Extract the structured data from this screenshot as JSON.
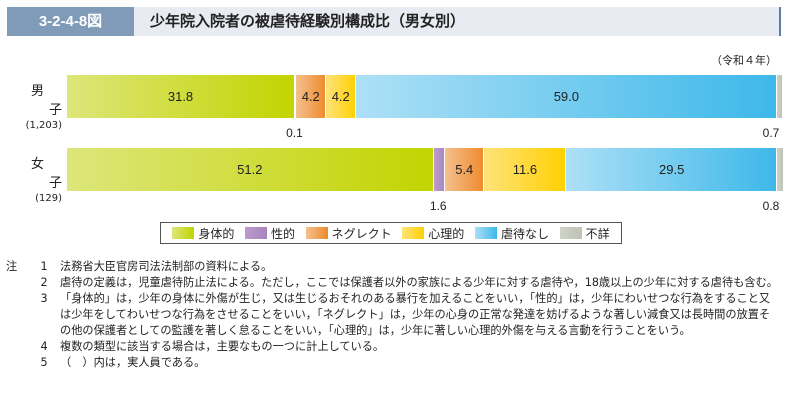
{
  "header": {
    "figure_no": "3-2-4-8図",
    "title": "少年院入院者の被虐待経験別構成比（男女別）"
  },
  "unit_note": "（令和４年）",
  "chart_data": {
    "type": "bar",
    "orientation": "horizontal",
    "stacked": true,
    "unit": "%",
    "categories": [
      "男子",
      "女子"
    ],
    "category_counts": [
      "(1,203)",
      "(129)"
    ],
    "series": [
      {
        "name": "身体的",
        "color": "#c4d600",
        "values": [
          31.8,
          51.2
        ]
      },
      {
        "name": "性的",
        "color": "#b08cc4",
        "values": [
          0.1,
          1.6
        ]
      },
      {
        "name": "ネグレクト",
        "color": "#ef9a45",
        "values": [
          4.2,
          5.4
        ]
      },
      {
        "name": "心理的",
        "color": "#ffd400",
        "values": [
          4.2,
          11.6
        ]
      },
      {
        "name": "虐待なし",
        "color": "#45bbea",
        "values": [
          59.0,
          29.5
        ]
      },
      {
        "name": "不詳",
        "color": "#c5c9bd",
        "values": [
          0.7,
          0.8
        ]
      }
    ],
    "labels_inside": [
      [
        "31.8",
        "",
        "4.2",
        "4.2",
        "59.0",
        ""
      ],
      [
        "51.2",
        "",
        "5.4",
        "11.6",
        "29.5",
        ""
      ]
    ],
    "labels_below": [
      [
        {
          "series": 1,
          "text": "0.1"
        },
        {
          "series": 5,
          "text": "0.7"
        }
      ],
      [
        {
          "series": 1,
          "text": "1.6"
        },
        {
          "series": 5,
          "text": "0.8"
        }
      ]
    ],
    "legend": "bottom"
  },
  "notes": {
    "prefix": "注",
    "items": [
      {
        "num": "1",
        "text": "法務省大臣官房司法法制部の資料による。"
      },
      {
        "num": "2",
        "text": "虐待の定義は，児童虐待防止法による。ただし，ここでは保護者以外の家族による少年に対する虐待や，18歳以上の少年に対する虐待も含む。"
      },
      {
        "num": "3",
        "text": "「身体的」は，少年の身体に外傷が生じ，又は生じるおそれのある暴行を加えることをいい，「性的」は，少年にわいせつな行為をすること又は少年をしてわいせつな行為をさせることをいい，「ネグレクト」は，少年の心身の正常な発達を妨げるような著しい減食又は長時間の放置その他の保護者としての監護を著しく怠ることをいい，「心理的」は，少年に著しい心理的外傷を与える言動を行うことをいう。"
      },
      {
        "num": "4",
        "text": "複数の類型に該当する場合は，主要なもの一つに計上している。"
      },
      {
        "num": "5",
        "text": "（　）内は，実人員である。"
      }
    ]
  }
}
